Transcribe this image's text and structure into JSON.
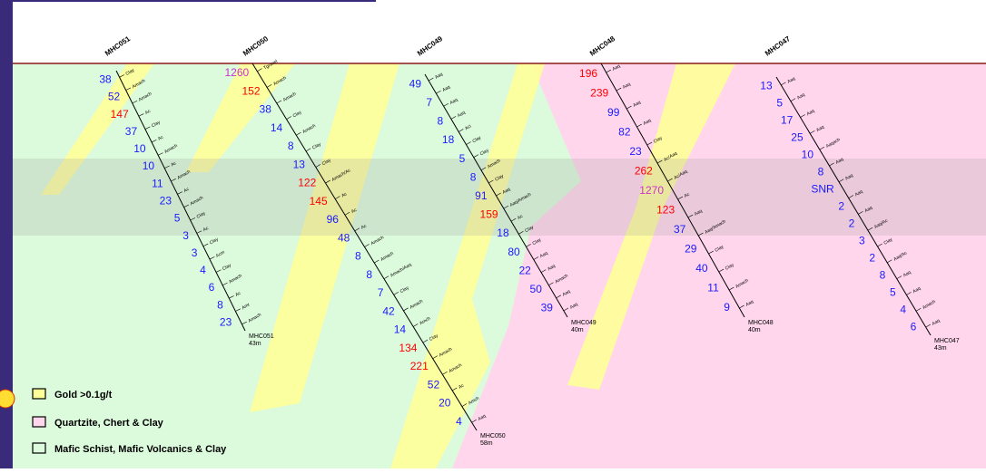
{
  "colors": {
    "gold": "#ffff99",
    "quartzite": "#ffd6ec",
    "mafic": "#dcfadc",
    "high_value": "#ff0000",
    "low_value": "#1a1aff",
    "mid_value": "#cc33cc",
    "collar_line": "#8b1a1a",
    "frame": "#3a2a7a"
  },
  "holes": [
    {
      "name": "MHC051",
      "end_label": "MHC051",
      "depth": "43m",
      "values": [
        {
          "v": "38",
          "c": "low"
        },
        {
          "v": "52",
          "c": "low"
        },
        {
          "v": "147",
          "c": "high"
        },
        {
          "v": "37",
          "c": "low"
        },
        {
          "v": "10",
          "c": "low"
        },
        {
          "v": "10",
          "c": "low"
        },
        {
          "v": "11",
          "c": "low"
        },
        {
          "v": "23",
          "c": "low"
        },
        {
          "v": "5",
          "c": "low"
        },
        {
          "v": "3",
          "c": "low"
        },
        {
          "v": "3",
          "c": "low"
        },
        {
          "v": "4",
          "c": "low"
        },
        {
          "v": "6",
          "c": "low"
        },
        {
          "v": "8",
          "c": "low"
        },
        {
          "v": "23",
          "c": "low"
        }
      ],
      "lith": [
        "Clay",
        "Amach",
        "Amach",
        "Ac",
        "Clay",
        "Ac",
        "Amach",
        "Ac",
        "Amach",
        "Ac",
        "Amach",
        "Clay",
        "Ac",
        "Clay",
        "Acm",
        "Clay",
        "Amach",
        "Ac",
        "Amr",
        "Amach"
      ]
    },
    {
      "name": "MHC050",
      "end_label": "MHC050",
      "depth": "58m",
      "values": [
        {
          "v": "1260",
          "c": "mid"
        },
        {
          "v": "152",
          "c": "high"
        },
        {
          "v": "38",
          "c": "low"
        },
        {
          "v": "14",
          "c": "low"
        },
        {
          "v": "8",
          "c": "low"
        },
        {
          "v": "13",
          "c": "low"
        },
        {
          "v": "122",
          "c": "high"
        },
        {
          "v": "145",
          "c": "high"
        },
        {
          "v": "96",
          "c": "low"
        },
        {
          "v": "48",
          "c": "low"
        },
        {
          "v": "8",
          "c": "low"
        },
        {
          "v": "8",
          "c": "low"
        },
        {
          "v": "7",
          "c": "low"
        },
        {
          "v": "42",
          "c": "low"
        },
        {
          "v": "14",
          "c": "low"
        },
        {
          "v": "134",
          "c": "high"
        },
        {
          "v": "221",
          "c": "high"
        },
        {
          "v": "52",
          "c": "low"
        },
        {
          "v": "20",
          "c": "low"
        },
        {
          "v": "4",
          "c": "low"
        }
      ],
      "lith": [
        "Tgravel",
        "Amach",
        "Amach",
        "Clay",
        "Amach",
        "Clay",
        "Clay",
        "Amach/Ac",
        "Ac",
        "Ac",
        "Ac",
        "Amach",
        "Amach",
        "Amach/Aaq",
        "Clay",
        "Amach",
        "Amch",
        "Clay",
        "Amach",
        "Amach",
        "Ac",
        "Amch",
        "Aaq"
      ]
    },
    {
      "name": "MHC049",
      "end_label": "MHC049",
      "depth": "40m",
      "values": [
        {
          "v": "49",
          "c": "low"
        },
        {
          "v": "7",
          "c": "low"
        },
        {
          "v": "8",
          "c": "low"
        },
        {
          "v": "18",
          "c": "low"
        },
        {
          "v": "5",
          "c": "low"
        },
        {
          "v": "8",
          "c": "low"
        },
        {
          "v": "91",
          "c": "low"
        },
        {
          "v": "159",
          "c": "high"
        },
        {
          "v": "18",
          "c": "low"
        },
        {
          "v": "80",
          "c": "low"
        },
        {
          "v": "22",
          "c": "low"
        },
        {
          "v": "50",
          "c": "low"
        },
        {
          "v": "39",
          "c": "low"
        }
      ],
      "lith": [
        "Aaq",
        "Aaq",
        "Aaq",
        "Aaq",
        "Aci",
        "Clay",
        "Clay",
        "Amach",
        "Clay",
        "Aaq",
        "Aaq/Amach",
        "Ac",
        "Clay",
        "Clay",
        "Aaq",
        "Aaq",
        "Amach",
        "Aaq",
        "Aaq"
      ]
    },
    {
      "name": "MHC048",
      "end_label": "MHC048",
      "depth": "40m",
      "values": [
        {
          "v": "196",
          "c": "high"
        },
        {
          "v": "239",
          "c": "high"
        },
        {
          "v": "99",
          "c": "low"
        },
        {
          "v": "82",
          "c": "low"
        },
        {
          "v": "23",
          "c": "low"
        },
        {
          "v": "262",
          "c": "high"
        },
        {
          "v": "1270",
          "c": "mid"
        },
        {
          "v": "123",
          "c": "high"
        },
        {
          "v": "37",
          "c": "low"
        },
        {
          "v": "29",
          "c": "low"
        },
        {
          "v": "40",
          "c": "low"
        },
        {
          "v": "11",
          "c": "low"
        },
        {
          "v": "9",
          "c": "low"
        }
      ],
      "lith": [
        "Aaq",
        "Aaq",
        "Aaq",
        "Aaq",
        "Clay",
        "Ac/Aaq",
        "Ac/Aaq",
        "Ac",
        "Aaq",
        "Aaq/Amach",
        "Clay",
        "Clay",
        "Amach",
        "Aaq"
      ]
    },
    {
      "name": "MHC047",
      "end_label": "MHC047",
      "depth": "43m",
      "values": [
        {
          "v": "13",
          "c": "low"
        },
        {
          "v": "5",
          "c": "low"
        },
        {
          "v": "17",
          "c": "low"
        },
        {
          "v": "25",
          "c": "low"
        },
        {
          "v": "10",
          "c": "low"
        },
        {
          "v": "8",
          "c": "low"
        },
        {
          "v": "SNR",
          "c": "low"
        },
        {
          "v": "2",
          "c": "low"
        },
        {
          "v": "2",
          "c": "low"
        },
        {
          "v": "3",
          "c": "low"
        },
        {
          "v": "2",
          "c": "low"
        },
        {
          "v": "8",
          "c": "low"
        },
        {
          "v": "5",
          "c": "low"
        },
        {
          "v": "4",
          "c": "low"
        },
        {
          "v": "6",
          "c": "low"
        }
      ],
      "lith": [
        "Aaq",
        "Aaq",
        "Aaq",
        "Aaq",
        "Aaqach",
        "Aaq",
        "Aaq",
        "Aaq",
        "Aaq",
        "Aaq/Ac",
        "Clay",
        "Aaq/Ac",
        "Aaq",
        "Aaq",
        "Amach",
        "Aaq"
      ]
    }
  ],
  "legend": [
    {
      "label": "Gold >0.1g/t",
      "swatch": "gold"
    },
    {
      "label": "Quartzite, Chert & Clay",
      "swatch": "quartzite"
    },
    {
      "label": "Mafic Schist, Mafic Volcanics & Clay",
      "swatch": "mafic"
    }
  ]
}
